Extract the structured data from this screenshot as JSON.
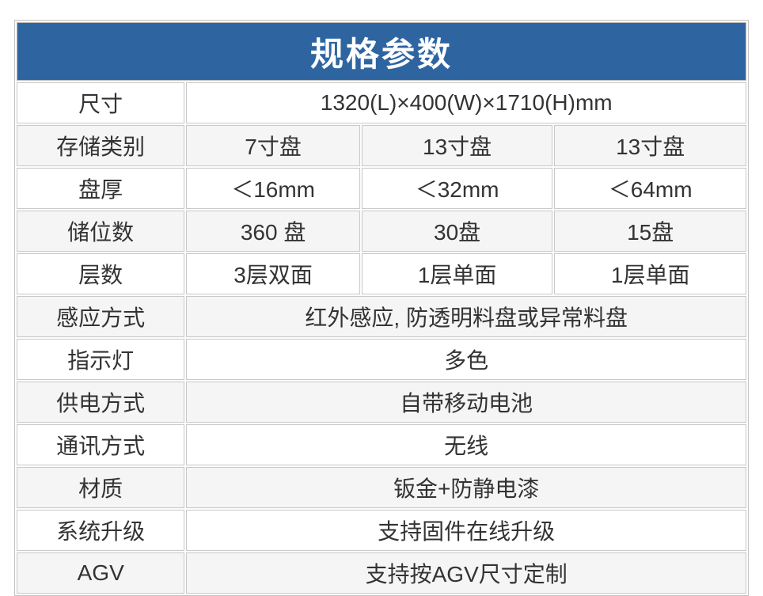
{
  "title": "规格参数",
  "theme": {
    "header_bg": "#2e65a1",
    "header_text": "#ffffff",
    "row_bg": "#ffffff",
    "row_alt_bg": "#f4f5f4",
    "border": "#c9c9c9",
    "text": "#333333"
  },
  "table": {
    "columns": 4,
    "rows": [
      {
        "label": "尺寸",
        "values": [
          "1320(L)×400(W)×1710(H)mm"
        ]
      },
      {
        "label": "存储类别",
        "values": [
          "7寸盘",
          "13寸盘",
          "13寸盘"
        ]
      },
      {
        "label": "盘厚",
        "values": [
          "＜16mm",
          "＜32mm",
          "＜64mm"
        ]
      },
      {
        "label": "储位数",
        "values": [
          "360 盘",
          "30盘",
          "15盘"
        ]
      },
      {
        "label": "层数",
        "values": [
          "3层双面",
          "1层单面",
          "1层单面"
        ]
      },
      {
        "label": "感应方式",
        "values": [
          "红外感应, 防透明料盘或异常料盘"
        ]
      },
      {
        "label": "指示灯",
        "values": [
          "多色"
        ]
      },
      {
        "label": "供电方式",
        "values": [
          "自带移动电池"
        ]
      },
      {
        "label": "通讯方式",
        "values": [
          "无线"
        ]
      },
      {
        "label": "材质",
        "values": [
          "钣金+防静电漆"
        ]
      },
      {
        "label": "系统升级",
        "values": [
          "支持固件在线升级"
        ]
      },
      {
        "label": "AGV",
        "values": [
          "支持按AGV尺寸定制"
        ]
      }
    ]
  }
}
